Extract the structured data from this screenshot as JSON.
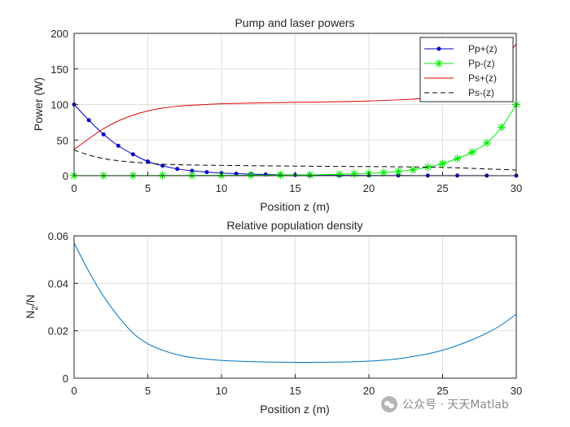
{
  "watermark": {
    "text": "公众号 · 天天Matlab",
    "icon": "wechat-icon"
  },
  "colors": {
    "pp_plus": "#0000cc",
    "pp_minus": "#00ee00",
    "ps_plus": "#e00000",
    "ps_minus": "#000000",
    "population": "#0072bd"
  },
  "chart_data": [
    {
      "type": "line",
      "title": "Pump and laser powers",
      "xlabel": "Position z (m)",
      "ylabel": "Power (W)",
      "xlim": [
        0,
        30
      ],
      "ylim": [
        0,
        200
      ],
      "xticks": [
        0,
        5,
        10,
        15,
        20,
        25,
        30
      ],
      "yticks": [
        0,
        50,
        100,
        150,
        200
      ],
      "grid": true,
      "legend": "top-right",
      "series": [
        {
          "name": "Pp+(z)",
          "line": "solid",
          "marker": "dot",
          "x": [
            0,
            1,
            2,
            3,
            4,
            5,
            6,
            7,
            8,
            9,
            10,
            11,
            12,
            13,
            14,
            15,
            16,
            18,
            20,
            22,
            24,
            26,
            28,
            30
          ],
          "y": [
            100,
            78,
            58,
            42,
            30,
            20,
            14,
            9.5,
            6.8,
            5,
            3.7,
            2.8,
            2.2,
            1.7,
            1.3,
            1,
            0.8,
            0.5,
            0.35,
            0.25,
            0.18,
            0.12,
            0.08,
            0.05
          ]
        },
        {
          "name": "Pp-(z)",
          "line": "solid",
          "marker": "asterisk",
          "x": [
            0,
            2,
            4,
            6,
            8,
            10,
            12,
            14,
            16,
            18,
            19,
            20,
            21,
            22,
            23,
            24,
            25,
            26,
            27,
            28,
            29,
            30
          ],
          "y": [
            0.1,
            0.1,
            0.2,
            0.3,
            0.4,
            0.5,
            0.7,
            0.9,
            1.2,
            1.9,
            2.5,
            3.3,
            4.3,
            6,
            8.5,
            12,
            17,
            24,
            33,
            46,
            68,
            100
          ]
        },
        {
          "name": "Ps+(z)",
          "line": "solid",
          "marker": "none",
          "x": [
            0,
            1,
            2,
            3,
            4,
            5,
            6,
            7,
            8,
            10,
            12,
            15,
            18,
            20,
            22,
            24,
            25,
            26,
            27,
            28,
            29,
            30
          ],
          "y": [
            37,
            52,
            66,
            77,
            85,
            91,
            95,
            97.5,
            99,
            101,
            102,
            103,
            104,
            105,
            106.5,
            109,
            111,
            116,
            125,
            140,
            160,
            185
          ]
        },
        {
          "name": "Ps-(z)",
          "line": "dashed",
          "marker": "none",
          "x": [
            0,
            1,
            2,
            3,
            4,
            5,
            6,
            8,
            10,
            12,
            15,
            18,
            20,
            22,
            24,
            26,
            28,
            30
          ],
          "y": [
            36,
            29,
            24,
            21,
            19,
            17.5,
            16,
            15,
            14.5,
            14,
            13.5,
            13,
            12.8,
            12.5,
            12,
            11,
            9.5,
            8
          ]
        }
      ]
    },
    {
      "type": "line",
      "title": "Relative population density",
      "xlabel": "Position z (m)",
      "ylabel": "N_2/N",
      "ylabel_parts": {
        "base": "N",
        "sub": "2",
        "rest": "/N"
      },
      "xlim": [
        0,
        30
      ],
      "ylim": [
        0,
        0.06
      ],
      "xticks": [
        0,
        5,
        10,
        15,
        20,
        25,
        30
      ],
      "yticks": [
        0,
        0.02,
        0.04,
        0.06
      ],
      "grid": true,
      "series": [
        {
          "x": [
            0,
            1,
            2,
            3,
            4,
            5,
            6,
            7,
            8,
            10,
            12,
            15,
            18,
            20,
            22,
            24,
            25,
            26,
            27,
            28,
            29,
            30
          ],
          "y": [
            0.057,
            0.045,
            0.0345,
            0.026,
            0.019,
            0.0145,
            0.0118,
            0.0099,
            0.0087,
            0.0075,
            0.007,
            0.0067,
            0.0068,
            0.0072,
            0.0082,
            0.0103,
            0.0118,
            0.0138,
            0.0162,
            0.019,
            0.0225,
            0.027
          ]
        }
      ]
    }
  ]
}
